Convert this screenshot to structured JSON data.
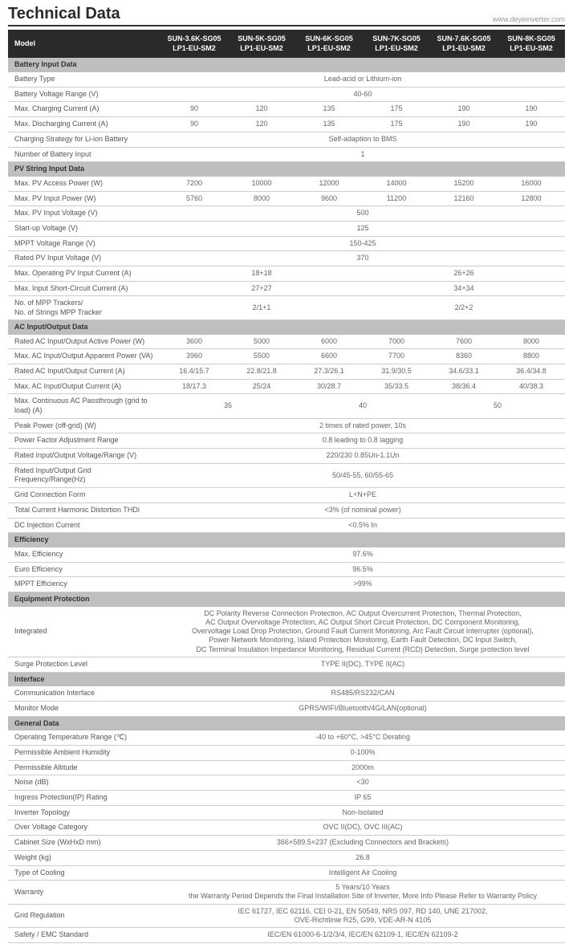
{
  "page": {
    "title": "Technical Data",
    "url": "www.deyeinverter.com"
  },
  "table": {
    "headerLabel": "Model",
    "models": [
      "SUN-3.6K-SG05\nLP1-EU-SM2",
      "SUN-5K-SG05\nLP1-EU-SM2",
      "SUN-6K-SG05\nLP1-EU-SM2",
      "SUN-7K-SG05\nLP1-EU-SM2",
      "SUN-7.6K-SG05\nLP1-EU-SM2",
      "SUN-8K-SG05\nLP1-EU-SM2"
    ],
    "rows": [
      {
        "type": "section",
        "label": "Battery Input Data"
      },
      {
        "label": "Battery Type",
        "span": 6,
        "value": "Lead-acid or Lithium-ion"
      },
      {
        "label": "Battery Voltage Range (V)",
        "span": 6,
        "value": "40-60"
      },
      {
        "label": "Max. Charging Current (A)",
        "cells": [
          "90",
          "120",
          "135",
          "175",
          "190",
          "190"
        ]
      },
      {
        "label": "Max. Discharging Current (A)",
        "cells": [
          "90",
          "120",
          "135",
          "175",
          "190",
          "190"
        ]
      },
      {
        "label": "Charging Strategy for Li-ion Battery",
        "span": 6,
        "value": "Self-adaption to BMS"
      },
      {
        "label": "Number of Battery Input",
        "span": 6,
        "value": "1"
      },
      {
        "type": "section",
        "label": "PV String Input Data"
      },
      {
        "label": "Max. PV Access Power (W)",
        "cells": [
          "7200",
          "10000",
          "12000",
          "14000",
          "15200",
          "16000"
        ]
      },
      {
        "label": "Max. PV Input Power (W)",
        "cells": [
          "5760",
          "8000",
          "9600",
          "11200",
          "12160",
          "12800"
        ]
      },
      {
        "label": "Max. PV Input Voltage (V)",
        "span": 6,
        "value": "500"
      },
      {
        "label": "Start-up Voltage (V)",
        "span": 6,
        "value": "125"
      },
      {
        "label": "MPPT Voltage Range (V)",
        "span": 6,
        "value": "150-425"
      },
      {
        "label": "Rated PV Input Voltage (V)",
        "span": 6,
        "value": "370"
      },
      {
        "label": "Max. Operating PV Input Current (A)",
        "spans": [
          [
            3,
            "18+18"
          ],
          [
            3,
            "26+26"
          ]
        ]
      },
      {
        "label": "Max. Input Short-Circuit Current (A)",
        "spans": [
          [
            3,
            "27+27"
          ],
          [
            3,
            "34+34"
          ]
        ]
      },
      {
        "label": "No. of MPP Trackers/\nNo. of Strings MPP Tracker",
        "spans": [
          [
            3,
            "2/1+1"
          ],
          [
            3,
            "2/2+2"
          ]
        ]
      },
      {
        "type": "section",
        "label": "AC Input/Output Data"
      },
      {
        "label": "Rated AC Input/Output Active Power (W)",
        "cells": [
          "3600",
          "5000",
          "6000",
          "7000",
          "7600",
          "8000"
        ]
      },
      {
        "label": "Max. AC Input/Output Apparent Power (VA)",
        "cells": [
          "3960",
          "5500",
          "6600",
          "7700",
          "8360",
          "8800"
        ]
      },
      {
        "label": "Rated AC Input/Output Current (A)",
        "cells": [
          "16.4/15.7",
          "22.8/21.8",
          "27.3/26.1",
          "31.9/30.5",
          "34.6/33.1",
          "36.4/34.8"
        ]
      },
      {
        "label": "Max. AC Input/Output Current (A)",
        "cells": [
          "18/17.3",
          "25/24",
          "30/28.7",
          "35/33.5",
          "38/36.4",
          "40/38.3"
        ]
      },
      {
        "label": "Max. Continuous AC Passthrough (grid to load) (A)",
        "spans": [
          [
            2,
            "35"
          ],
          [
            2,
            "40"
          ],
          [
            2,
            "50"
          ]
        ]
      },
      {
        "label": "Peak Power (off-grid) (W)",
        "span": 6,
        "value": "2 times of rated power, 10s"
      },
      {
        "label": "Power Factor Adjustment Range",
        "span": 6,
        "value": "0.8 leading to 0.8 lagging"
      },
      {
        "label": "Rated Input/Output Voltage/Range (V)",
        "span": 6,
        "value": "220/230   0.85Un-1.1Un"
      },
      {
        "label": "Rated Input/Output Grid Frequency/Range(Hz)",
        "span": 6,
        "value": "50/45-55,  60/55-65"
      },
      {
        "label": "Grid Connection Form",
        "span": 6,
        "value": "L+N+PE"
      },
      {
        "label": "Total Current Harmonic Distortion THDi",
        "span": 6,
        "value": "<3% (of nominal power)"
      },
      {
        "label": "DC Injection Current",
        "span": 6,
        "value": "<0.5% In"
      },
      {
        "type": "section",
        "label": "Efficiency"
      },
      {
        "label": "Max. Efficiency",
        "span": 6,
        "value": "97.6%"
      },
      {
        "label": "Euro Efficiency",
        "span": 6,
        "value": "96.5%"
      },
      {
        "label": "MPPT Efficiency",
        "span": 6,
        "value": ">99%"
      },
      {
        "type": "section",
        "label": "Equipment Protection"
      },
      {
        "label": "Integrated",
        "span": 6,
        "value": "DC Polarity Reverse Connection Protection, AC Output Overcurrent Protection, Thermal Protection,\nAC Output Overvoltage Protection, AC Output Short Circuit Protection, DC Component Monitoring,\nOvervoltage Load Drop Protection, Ground Fault Current Monitoring, Arc Fault Circuit Interrupter (optional),\nPower Network Monitoring, Island Protection Monitoring, Earth Fault Detection, DC Input Switch,\nDC Terminal Insulation Impedance Monitoring, Residual Current (RCD) Detection, Surge protection level"
      },
      {
        "label": "Surge Protection Level",
        "span": 6,
        "value": "TYPE II(DC), TYPE II(AC)"
      },
      {
        "type": "section",
        "label": "Interface"
      },
      {
        "label": "Communication Interface",
        "span": 6,
        "value": "RS485/RS232/CAN"
      },
      {
        "label": "Monitor Mode",
        "span": 6,
        "value": "GPRS/WIFI/Bluetooth/4G/LAN(optional)"
      },
      {
        "type": "section",
        "label": "General Data"
      },
      {
        "label": "Operating Temperature Range (℃)",
        "span": 6,
        "value": "-40 to +60°C, >45°C Derating"
      },
      {
        "label": "Permissible Ambient Humidity",
        "span": 6,
        "value": "0-100%"
      },
      {
        "label": "Permissible Altitude",
        "span": 6,
        "value": "2000m"
      },
      {
        "label": "Noise (dB)",
        "span": 6,
        "value": "<30"
      },
      {
        "label": "Ingress Protection(IP) Rating",
        "span": 6,
        "value": "IP 65"
      },
      {
        "label": "Inverter Topology",
        "span": 6,
        "value": "Non-Isolated"
      },
      {
        "label": "Over Voltage Category",
        "span": 6,
        "value": "OVC II(DC), OVC III(AC)"
      },
      {
        "label": "Cabinet Size (WxHxD mm)",
        "span": 6,
        "value": "366×589.5×237 (Excluding Connectors and Brackets)"
      },
      {
        "label": "Weight (kg)",
        "span": 6,
        "value": "26.8"
      },
      {
        "label": "Type of Cooling",
        "span": 6,
        "value": "Intelligent Air Cooling"
      },
      {
        "label": "Warranty",
        "span": 6,
        "value": "5 Years/10 Years\nthe Warranty Period Depends the Final Installation Site of Inverter, More Info Please Refer to Warranty Policy"
      },
      {
        "label": "Grid Regulation",
        "span": 6,
        "value": "IEC 61727, IEC 62116, CEI 0-21, EN 50549, NRS 097, RD 140, UNE 217002,\nOVE-Richtlinie R25, G99, VDE-AR-N 4105"
      },
      {
        "label": "Safety / EMC Standard",
        "span": 6,
        "value": "IEC/EN 61000-6-1/2/3/4, IEC/EN 62109-1, IEC/EN 62109-2"
      }
    ]
  }
}
